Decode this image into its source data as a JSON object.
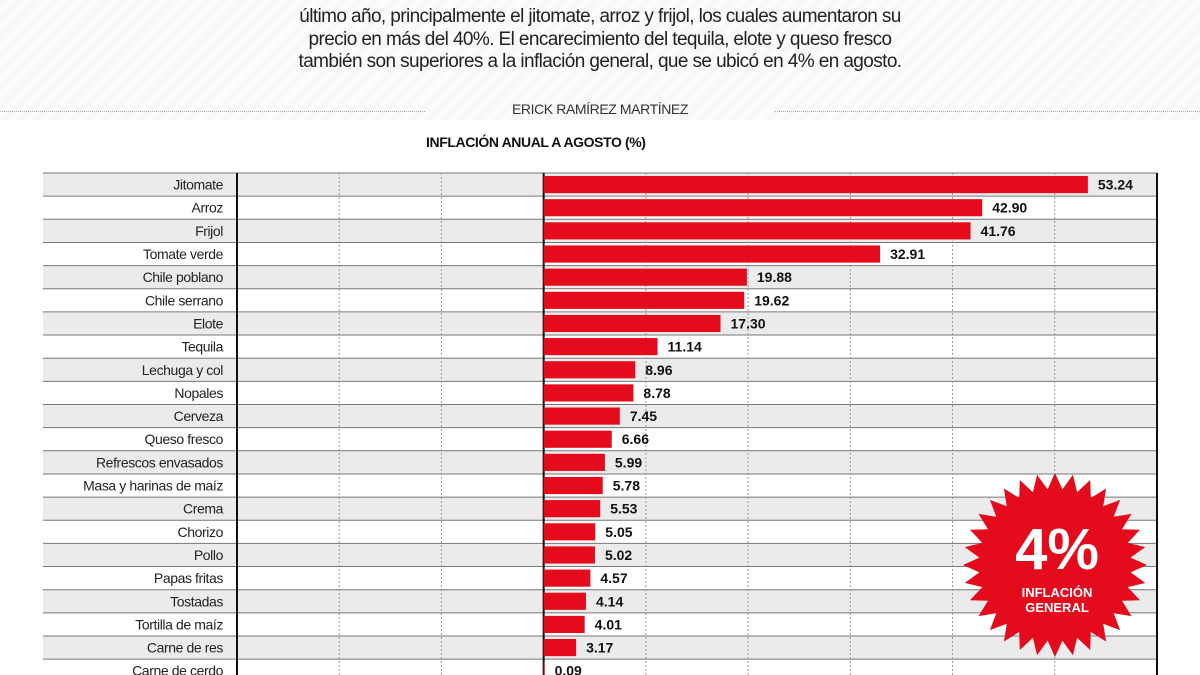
{
  "intro": {
    "lines": [
      "último año, principalmente el jitomate, arroz y frijol, los cuales aumentaron su",
      "precio en más del 40%. El encarecimiento del tequila, elote y queso fresco",
      "también son superiores a la inflación general, que se ubicó en 4% en agosto."
    ]
  },
  "byline": "ERICK RAMÍREZ MARTÍNEZ",
  "badge": {
    "value": "4%",
    "line1": "INFLACIÓN",
    "line2": "GENERAL",
    "color": "#e30b1c"
  },
  "chart_data": {
    "type": "bar",
    "orientation": "horizontal",
    "title": "INFLACIÓN ANUAL A AGOSTO (%)",
    "xlim": [
      -30,
      60
    ],
    "grid": true,
    "bar_color": "#e30b1c",
    "categories": [
      "Jitomate",
      "Arroz",
      "Frijol",
      "Tomate verde",
      "Chile poblano",
      "Chile serrano",
      "Elote",
      "Tequila",
      "Lechuga y col",
      "Nopales",
      "Cerveza",
      "Queso fresco",
      "Refrescos envasados",
      "Masa y harinas de maíz",
      "Crema",
      "Chorizo",
      "Pollo",
      "Papas fritas",
      "Tostadas",
      "Tortilla de maíz",
      "Carne de res",
      "Carne de cerdo"
    ],
    "values": [
      53.24,
      42.9,
      41.76,
      32.91,
      19.88,
      19.62,
      17.3,
      11.14,
      8.96,
      8.78,
      7.45,
      6.66,
      5.99,
      5.78,
      5.53,
      5.05,
      5.02,
      4.57,
      4.14,
      4.01,
      3.17,
      0.09
    ],
    "labels": [
      "53.24",
      "42.90",
      "41.76",
      "32.91",
      "19.88",
      "19.62",
      "17.30",
      "11.14",
      "8.96",
      "8.78",
      "7.45",
      "6.66",
      "5.99",
      "5.78",
      "5.53",
      "5.05",
      "5.02",
      "4.57",
      "4.14",
      "4.01",
      "3.17",
      "0.09"
    ]
  }
}
